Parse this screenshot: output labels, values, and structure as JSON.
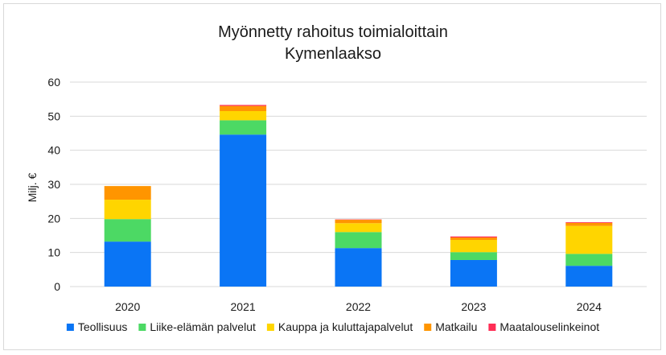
{
  "chart_data": {
    "type": "bar",
    "stacked": true,
    "title": [
      "Myönnetty rahoitus toimialoittain",
      "Kymenlaakso"
    ],
    "xlabel": "",
    "ylabel": "Milj. €",
    "ylim": [
      0,
      60
    ],
    "yticks": [
      0,
      10,
      20,
      30,
      40,
      50,
      60
    ],
    "grid": true,
    "legend_position": "bottom",
    "categories": [
      "2020",
      "2021",
      "2022",
      "2023",
      "2024"
    ],
    "series": [
      {
        "name": "Teollisuus",
        "color": "#0a75f5",
        "values": [
          13.2,
          44.6,
          11.3,
          7.8,
          6.1
        ]
      },
      {
        "name": "Liike-elämän palvelut",
        "color": "#4cd964",
        "values": [
          6.6,
          4.2,
          4.7,
          2.3,
          3.5
        ]
      },
      {
        "name": "Kauppa ja kuluttajapalvelut",
        "color": "#ffd500",
        "values": [
          5.7,
          2.7,
          2.6,
          3.6,
          8.2
        ]
      },
      {
        "name": "Matkailu",
        "color": "#ff9500",
        "values": [
          4.0,
          1.5,
          1.0,
          0.7,
          0.9
        ]
      },
      {
        "name": "Maatalouselinkeinot",
        "color": "#ff2d55",
        "values": [
          0.0,
          0.3,
          0.1,
          0.3,
          0.2
        ]
      }
    ]
  }
}
